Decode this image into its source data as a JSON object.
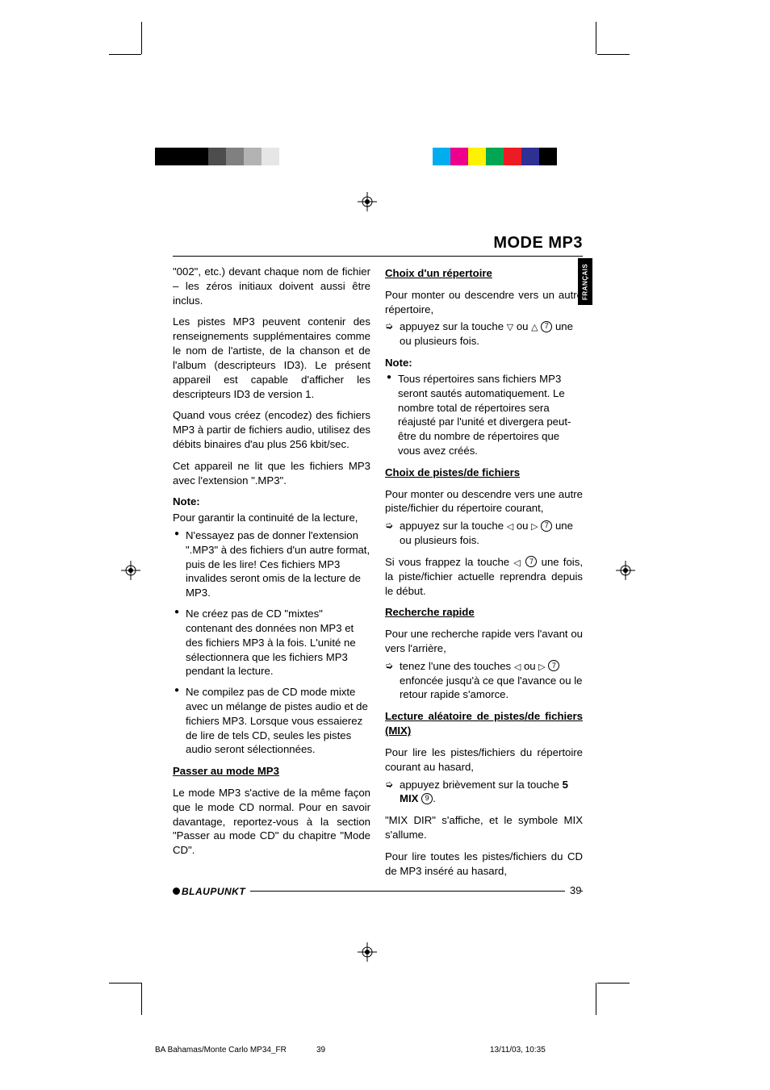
{
  "colorbars": {
    "left": [
      "#000000",
      "#000000",
      "#000000",
      "#4d4d4d",
      "#808080",
      "#b3b3b3",
      "#e6e6e6",
      "#ffffff"
    ],
    "right": [
      "#ffffff",
      "#00aeef",
      "#ec008c",
      "#fff200",
      "#00a651",
      "#ed1c24",
      "#2e3192",
      "#000000"
    ]
  },
  "header": {
    "title": "MODE MP3"
  },
  "lang_tab": "FRANÇAIS",
  "left_col": {
    "p1": "\"002\", etc.) devant chaque nom de fichier – les zéros initiaux doivent aussi être inclus.",
    "p2": "Les pistes MP3 peuvent contenir des renseignements supplémentaires comme le nom de l'artiste, de la chanson et de l'album (descripteurs ID3). Le présent appareil est capable d'afficher les descripteurs ID3 de version 1.",
    "p3": "Quand vous créez (encodez) des fichiers MP3 à partir de fichiers audio, utilisez des débits binaires d'au plus 256 kbit/sec.",
    "p4": "Cet appareil ne lit que les fichiers MP3 avec l'extension \".MP3\".",
    "note_label": "Note:",
    "note_intro": "Pour garantir la continuité de la lecture,",
    "bullets": [
      "N'essayez pas de donner l'extension \".MP3\" à des fichiers d'un autre format, puis de les lire! Ces fichiers MP3 invalides seront omis de la lecture de MP3.",
      "Ne créez pas de CD \"mixtes\" contenant des données non MP3 et des fichiers MP3 à la fois. L'unité ne sélectionnera que les fichiers MP3 pendant la lecture.",
      "Ne compilez pas de CD mode mixte avec un mélange de pistes audio et de fichiers MP3. Lorsque vous essaierez de lire de tels CD, seules les pistes audio seront sélectionnées."
    ],
    "h_passer": "Passer au mode MP3",
    "p_passer": "Le mode MP3 s'active de la même façon que le mode CD normal. Pour en savoir davantage, reportez-vous à la section \"Passer au mode CD\" du chapitre \"Mode CD\"."
  },
  "right_col": {
    "h_choix_rep": "Choix d'un répertoire",
    "p_choix_rep": "Pour monter ou descendre vers un autre répertoire,",
    "arrow_choix_rep_a": "appuyez sur la touche ",
    "arrow_choix_rep_b": " ou ",
    "arrow_choix_rep_c": " une ou plusieurs fois.",
    "note_label": "Note:",
    "note_bullet": "Tous répertoires sans fichiers MP3 seront sautés automatiquement. Le nombre total de répertoires sera réajusté par l'unité et divergera peut-être du nombre de répertoires que vous avez créés.",
    "h_choix_pistes": "Choix de pistes/de fichiers",
    "p_choix_pistes": "Pour monter ou descendre vers une autre piste/fichier du répertoire courant,",
    "arrow_pistes_a": "appuyez sur la touche ",
    "arrow_pistes_b": " ou ",
    "arrow_pistes_c": " une ou plusieurs fois.",
    "p_si_a": "Si vous frappez la touche ",
    "p_si_b": " une fois, la piste/fichier actuelle reprendra depuis le début.",
    "h_recherche": "Recherche rapide",
    "p_recherche": "Pour une recherche rapide vers l'avant ou vers l'arrière,",
    "arrow_rech_a": "tenez l'une des touches ",
    "arrow_rech_b": " ou ",
    "arrow_rech_c": " enfoncée jusqu'à ce que l'avance ou le retour rapide s'amorce.",
    "h_mix": "Lecture aléatoire de pistes/de fichiers (MIX)",
    "p_mix": "Pour lire les pistes/fichiers du répertoire courant au hasard,",
    "arrow_mix_a": "appuyez brièvement sur la touche ",
    "arrow_mix_b": "5 MIX",
    "p_mix2": "\"MIX DIR\" s'affiche, et le symbole MIX s'allume.",
    "p_mix3": "Pour lire toutes les pistes/fichiers du CD de MP3 inséré au hasard,",
    "ref7": "7",
    "ref9": "9"
  },
  "footer": {
    "logo": "BLAUPUNKT",
    "page": "39",
    "imprint_doc": "BA Bahamas/Monte Carlo MP34_FR",
    "imprint_page": "39",
    "imprint_date": "13/11/03, 10:35"
  }
}
